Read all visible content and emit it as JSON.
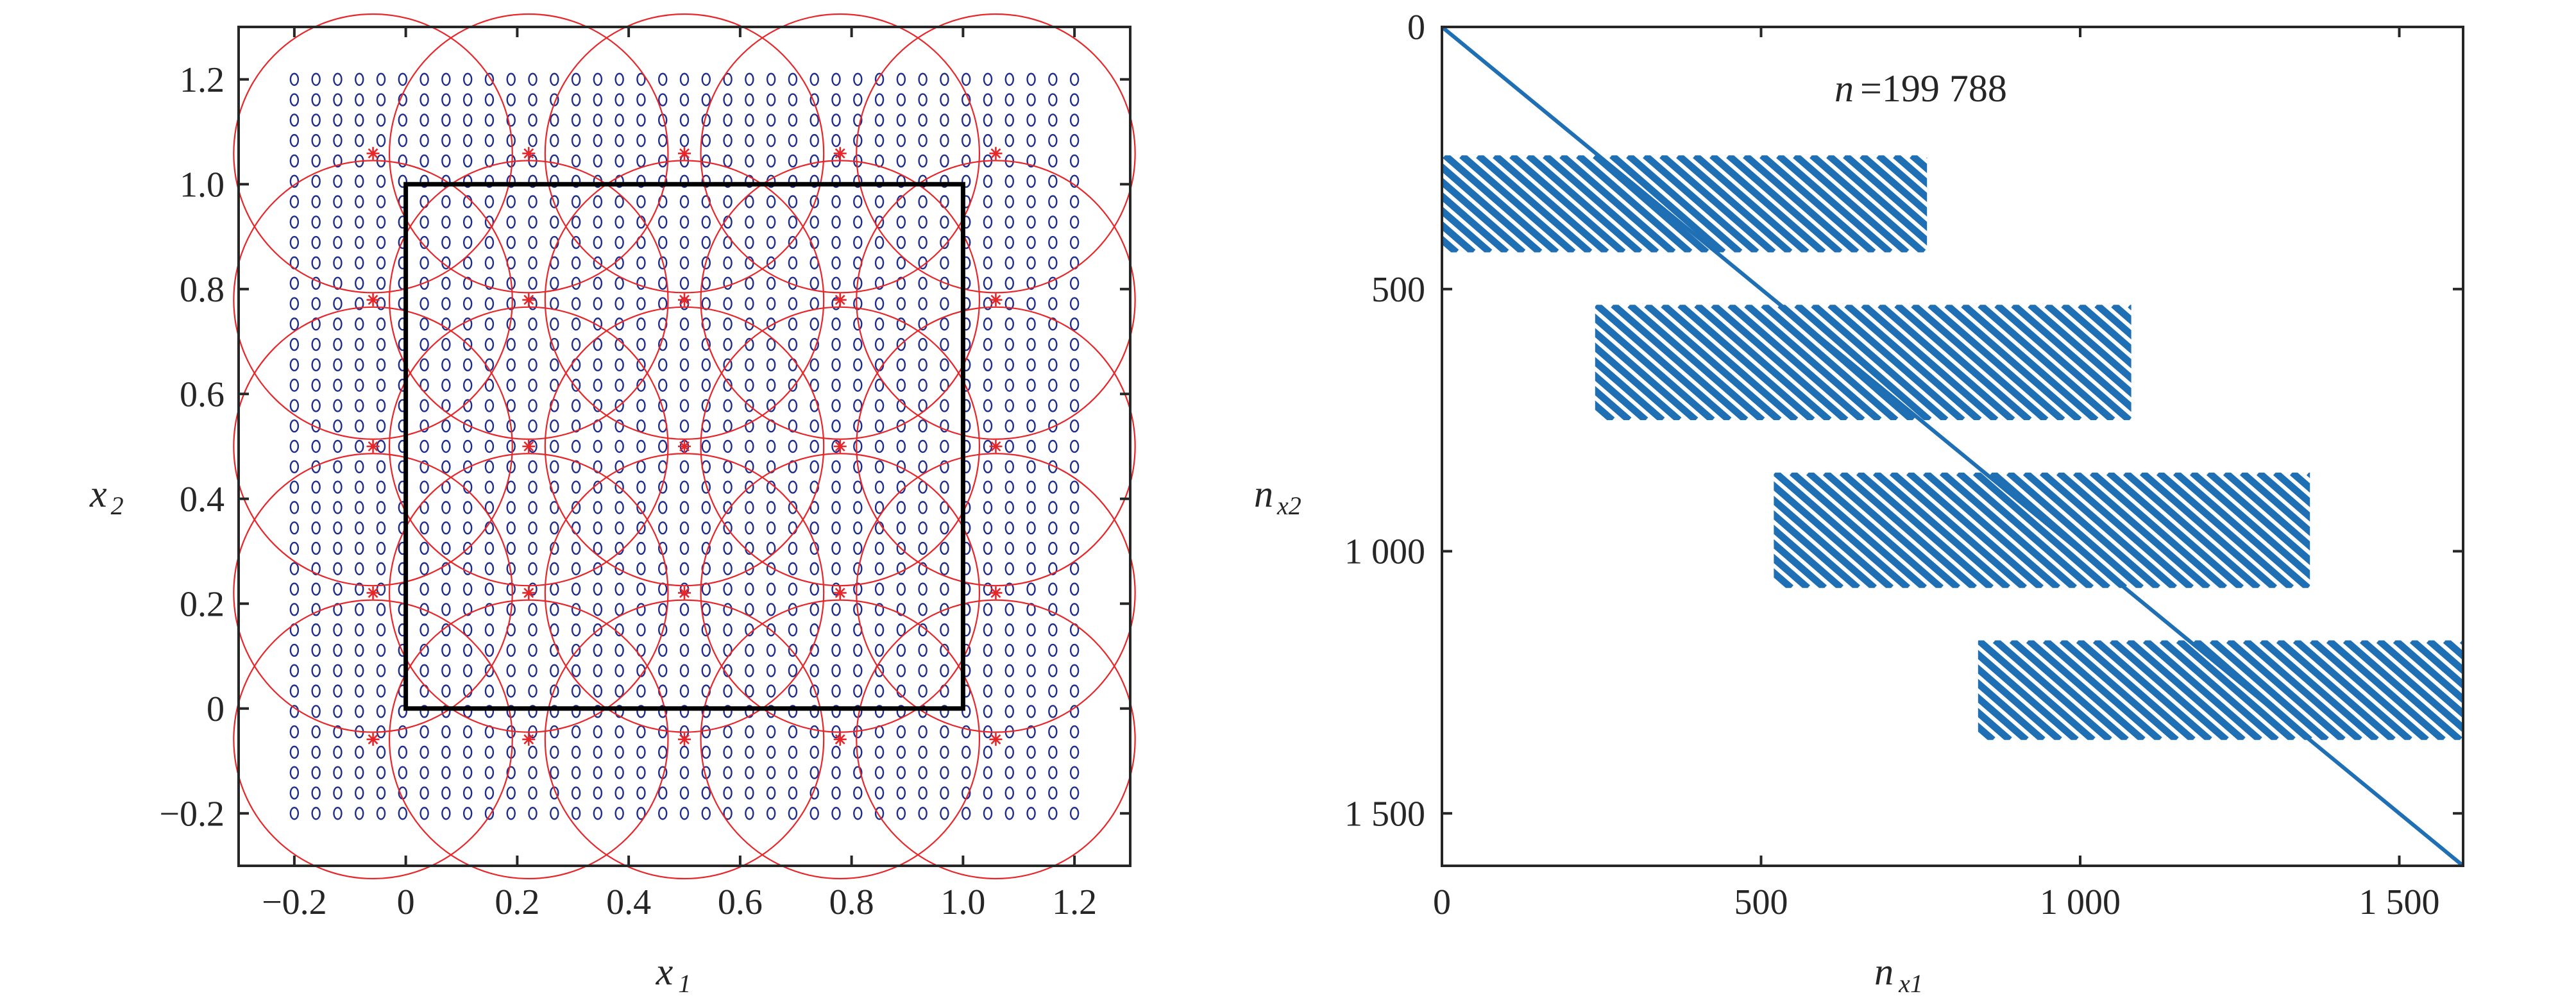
{
  "chart_data": [
    {
      "type": "scatter",
      "xlabel": "x",
      "xlabel_sub": "1",
      "ylabel": "x",
      "ylabel_sub": "2",
      "xlim": [
        -0.3,
        1.3
      ],
      "ylim": [
        -0.3,
        1.3
      ],
      "xticks": [
        -0.2,
        0,
        0.2,
        0.4,
        0.6,
        0.8,
        1.0,
        1.2
      ],
      "xtick_labels": [
        "−0.2",
        "0",
        "0.2",
        "0.4",
        "0.6",
        "0.8",
        "1.0",
        "1.2"
      ],
      "yticks": [
        -0.2,
        0,
        0.2,
        0.4,
        0.6,
        0.8,
        1.0,
        1.2
      ],
      "ytick_labels": [
        "−0.2",
        "0",
        "0.2",
        "0.4",
        "0.6",
        "0.8",
        "1.0",
        "1.2"
      ],
      "grid": false,
      "domain_square": {
        "x": [
          0,
          1
        ],
        "y": [
          0,
          1
        ],
        "color": "#000000"
      },
      "sample_points": {
        "marker": "o",
        "color": "#1f2e8c",
        "x_start": -0.2,
        "x_end": 1.2,
        "x_count": 37,
        "y_start": -0.2,
        "y_end": 1.2,
        "y_count": 37
      },
      "centers": {
        "marker": "*",
        "color": "#e8262a",
        "values": [
          -0.0588,
          0.2206,
          0.5,
          0.7794,
          1.0588
        ]
      },
      "circles": {
        "radius": 0.25,
        "color": "#e8262a"
      }
    },
    {
      "type": "heatmap",
      "annotation_var": "n",
      "annotation_value": "=199 788",
      "xlabel": "n",
      "xlabel_sub": "x1",
      "ylabel": "n",
      "ylabel_sub": "x2",
      "xlim": [
        0,
        1600
      ],
      "ylim": [
        0,
        1600
      ],
      "y_reversed": true,
      "xticks": [
        0,
        500,
        1000,
        1500
      ],
      "xtick_labels": [
        "0",
        "500",
        "1 000",
        "1 500"
      ],
      "yticks": [
        0,
        500,
        1000,
        1500
      ],
      "ytick_labels": [
        "0",
        "500",
        "1 000",
        "1 500"
      ],
      "color": "#1f6fb5",
      "diagonal": [
        [
          0,
          0
        ],
        [
          1600,
          1600
        ]
      ],
      "blocks": [
        {
          "x": [
            0,
            760
          ],
          "y": [
            245,
            430
          ]
        },
        {
          "x": [
            240,
            1080
          ],
          "y": [
            530,
            750
          ]
        },
        {
          "x": [
            520,
            1360
          ],
          "y": [
            850,
            1070
          ]
        },
        {
          "x": [
            840,
            1600
          ],
          "y": [
            1170,
            1360
          ]
        }
      ]
    }
  ]
}
